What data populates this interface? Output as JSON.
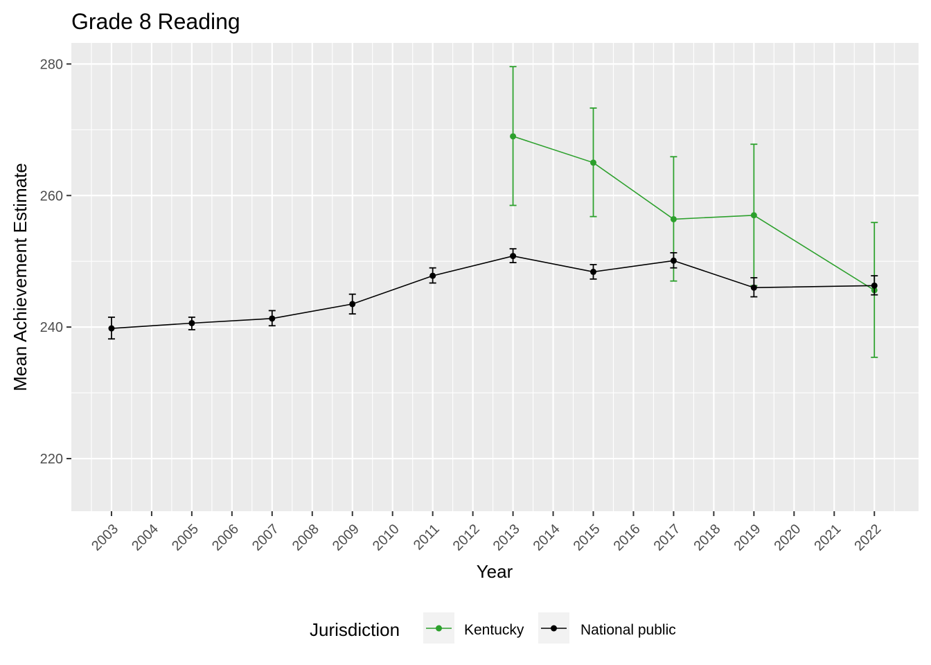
{
  "chart_data": {
    "type": "line",
    "title": "Grade 8 Reading",
    "xlabel": "Year",
    "ylabel": "Mean Achievement Estimate",
    "x_ticks": [
      "2003",
      "2004",
      "2005",
      "2006",
      "2007",
      "2008",
      "2009",
      "2010",
      "2011",
      "2012",
      "2013",
      "2014",
      "2015",
      "2016",
      "2017",
      "2018",
      "2019",
      "2020",
      "2021",
      "2022"
    ],
    "y_ticks": [
      220,
      240,
      260,
      280
    ],
    "xlim": [
      2002,
      2023.1
    ],
    "ylim": [
      212,
      283.2
    ],
    "grid": true,
    "legend_title": "Jurisdiction",
    "legend_position": "bottom",
    "series": [
      {
        "name": "Kentucky",
        "color": "#2ca02c",
        "points": [
          {
            "year": 2013,
            "value": 269.0,
            "lower": 258.5,
            "upper": 279.6
          },
          {
            "year": 2015,
            "value": 265.0,
            "lower": 256.8,
            "upper": 273.3
          },
          {
            "year": 2017,
            "value": 256.4,
            "lower": 247.0,
            "upper": 265.9
          },
          {
            "year": 2019,
            "value": 257.0,
            "lower": 246.3,
            "upper": 267.8
          },
          {
            "year": 2022,
            "value": 245.6,
            "lower": 235.4,
            "upper": 255.9
          }
        ]
      },
      {
        "name": "National public",
        "color": "#000000",
        "points": [
          {
            "year": 2003,
            "value": 239.8,
            "lower": 238.2,
            "upper": 241.5
          },
          {
            "year": 2005,
            "value": 240.6,
            "lower": 239.6,
            "upper": 241.5
          },
          {
            "year": 2007,
            "value": 241.3,
            "lower": 240.2,
            "upper": 242.5
          },
          {
            "year": 2009,
            "value": 243.5,
            "lower": 242.0,
            "upper": 245.0
          },
          {
            "year": 2011,
            "value": 247.8,
            "lower": 246.7,
            "upper": 249.0
          },
          {
            "year": 2013,
            "value": 250.8,
            "lower": 249.8,
            "upper": 251.9
          },
          {
            "year": 2015,
            "value": 248.4,
            "lower": 247.3,
            "upper": 249.5
          },
          {
            "year": 2017,
            "value": 250.1,
            "lower": 249.0,
            "upper": 251.3
          },
          {
            "year": 2019,
            "value": 246.0,
            "lower": 244.6,
            "upper": 247.5
          },
          {
            "year": 2022,
            "value": 246.3,
            "lower": 244.9,
            "upper": 247.8
          }
        ]
      }
    ]
  }
}
